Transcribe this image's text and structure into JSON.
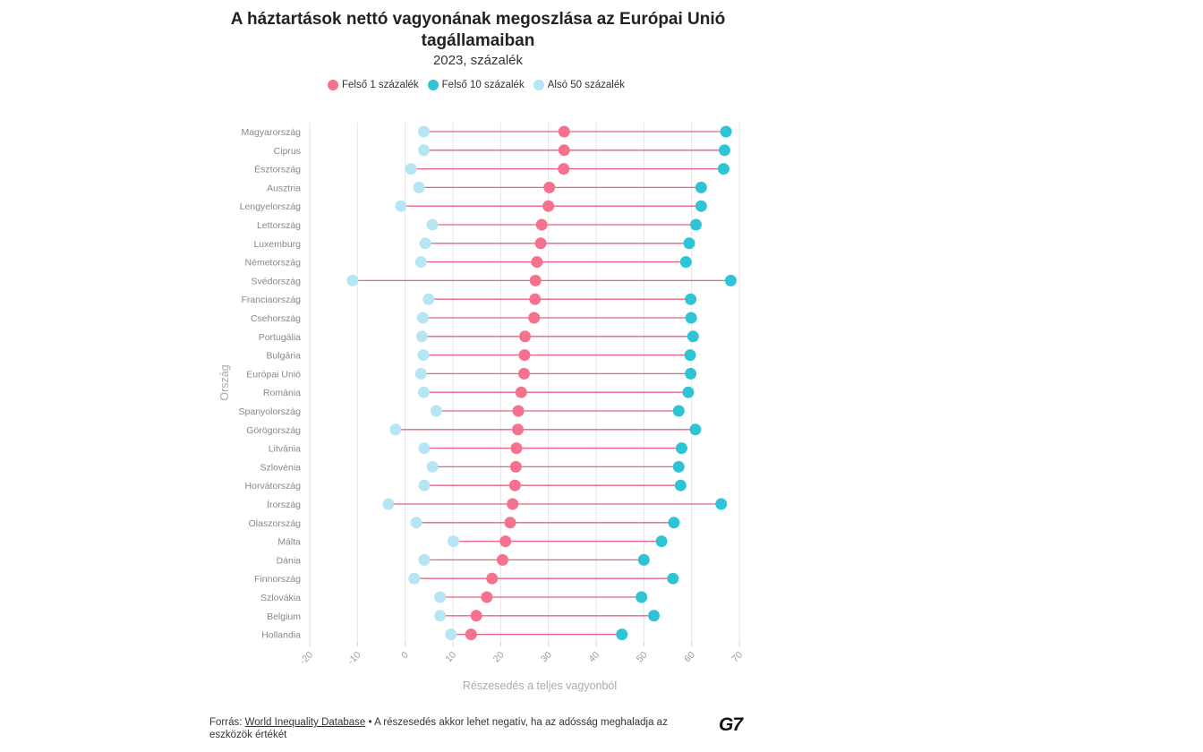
{
  "chart_data": {
    "type": "dumbbell",
    "title": "A háztartások nettó vagyonának megoszlása az Európai Unió tagállamaiban",
    "subtitle": "2023, százalék",
    "xlabel": "Részesedés a teljes vagyonból",
    "ylabel": "Ország",
    "xlim": [
      -20,
      70
    ],
    "xticks": [
      -20,
      -10,
      0,
      10,
      20,
      30,
      40,
      50,
      60,
      70
    ],
    "series": [
      {
        "name": "Felső 1 százalék",
        "color": "#f5728f",
        "values": [
          33.3,
          33.3,
          33.2,
          30.2,
          30.0,
          28.6,
          28.4,
          27.6,
          27.3,
          27.2,
          27.0,
          25.1,
          25.0,
          24.9,
          24.3,
          23.7,
          23.6,
          23.3,
          23.2,
          23.0,
          22.5,
          22.0,
          21.0,
          20.4,
          18.2,
          17.1,
          14.9,
          13.8
        ]
      },
      {
        "name": "Felső 10 százalék",
        "color": "#2ec4d6",
        "values": [
          67.2,
          66.9,
          66.7,
          62.0,
          62.0,
          60.9,
          59.5,
          58.8,
          68.2,
          59.8,
          59.9,
          60.3,
          59.7,
          59.8,
          59.3,
          57.3,
          60.8,
          57.9,
          57.3,
          57.7,
          66.2,
          56.3,
          53.7,
          50.0,
          56.1,
          49.5,
          52.1,
          45.4
        ]
      },
      {
        "name": "Alsó 50 százalék",
        "color": "#b6e6f3",
        "values": [
          3.9,
          3.9,
          1.2,
          2.9,
          -0.9,
          5.7,
          4.2,
          3.3,
          -11.0,
          4.9,
          3.7,
          3.5,
          3.8,
          3.3,
          3.9,
          6.5,
          -2.0,
          4.0,
          5.7,
          4.0,
          -3.5,
          2.3,
          10.1,
          4.0,
          1.9,
          7.3,
          7.3,
          9.6
        ]
      }
    ],
    "categories": [
      "Magyarország",
      "Ciprus",
      "Észtország",
      "Ausztria",
      "Lengyelország",
      "Lettország",
      "Luxemburg",
      "Németország",
      "Svédország",
      "Franciaország",
      "Csehország",
      "Portugália",
      "Bulgária",
      "Európai Unió",
      "Románia",
      "Spanyolország",
      "Görögország",
      "Litvánia",
      "Szlovénia",
      "Horvátország",
      "Írország",
      "Olaszország",
      "Málta",
      "Dánia",
      "Finnország",
      "Szlovákia",
      "Belgium",
      "Hollandia"
    ]
  },
  "footer": {
    "prefix": "Forrás: ",
    "source_link": "World Inequality Database",
    "note": " • A részesedés akkor lehet negatív, ha az adósság meghaladja az eszközök értékét",
    "logo": "G7"
  }
}
